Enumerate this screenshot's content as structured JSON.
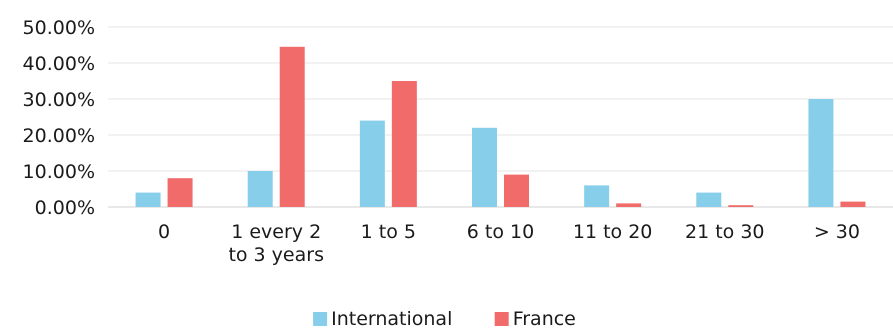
{
  "chart_data": {
    "type": "bar",
    "categories": [
      [
        "0"
      ],
      [
        "1 every 2",
        "to 3 years"
      ],
      [
        "1 to 5"
      ],
      [
        "6 to 10"
      ],
      [
        "11 to 20"
      ],
      [
        "21 to 30"
      ],
      [
        "> 30"
      ]
    ],
    "series": [
      {
        "name": "International",
        "color": "#87ceeb",
        "values": [
          4,
          10,
          24,
          22,
          6,
          4,
          30
        ]
      },
      {
        "name": "France",
        "color": "#f26b6b",
        "values": [
          8,
          44.5,
          35,
          9,
          1,
          0.5,
          1.5
        ]
      }
    ],
    "ylim": [
      0,
      50
    ],
    "yticks": [
      "0.00%",
      "10.00%",
      "20.00%",
      "30.00%",
      "40.00%",
      "50.00%"
    ],
    "grid": true,
    "legend": "bottom-center"
  }
}
